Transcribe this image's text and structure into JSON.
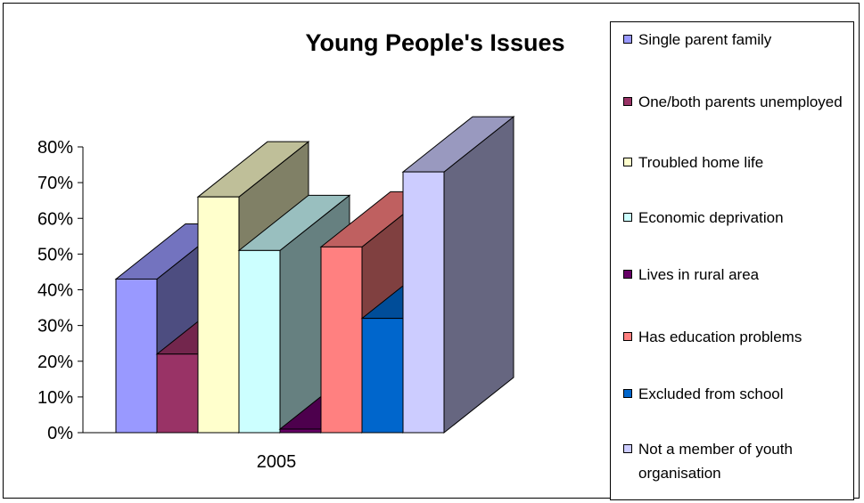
{
  "chart_data": {
    "type": "bar",
    "title": "Young People's Issues",
    "categories": [
      "2005"
    ],
    "yticks": [
      "0%",
      "10%",
      "20%",
      "30%",
      "40%",
      "50%",
      "60%",
      "70%",
      "80%"
    ],
    "ylim": [
      0,
      80
    ],
    "series": [
      {
        "name": "Single parent family",
        "values": [
          43
        ],
        "color": "#9999ff"
      },
      {
        "name": "One/both parents unemployed",
        "values": [
          22
        ],
        "color": "#993366"
      },
      {
        "name": "Troubled home life",
        "values": [
          66
        ],
        "color": "#ffffcc"
      },
      {
        "name": "Economic deprivation",
        "values": [
          51
        ],
        "color": "#ccffff"
      },
      {
        "name": "Lives in rural area",
        "values": [
          1
        ],
        "color": "#660066"
      },
      {
        "name": "Has education problems",
        "values": [
          52
        ],
        "color": "#ff8080"
      },
      {
        "name": "Excluded from school",
        "values": [
          32
        ],
        "color": "#0066cc"
      },
      {
        "name": "Not a member of youth organisation",
        "values": [
          73
        ],
        "color": "#ccccff"
      }
    ],
    "legend_position": "right",
    "grid": false
  }
}
